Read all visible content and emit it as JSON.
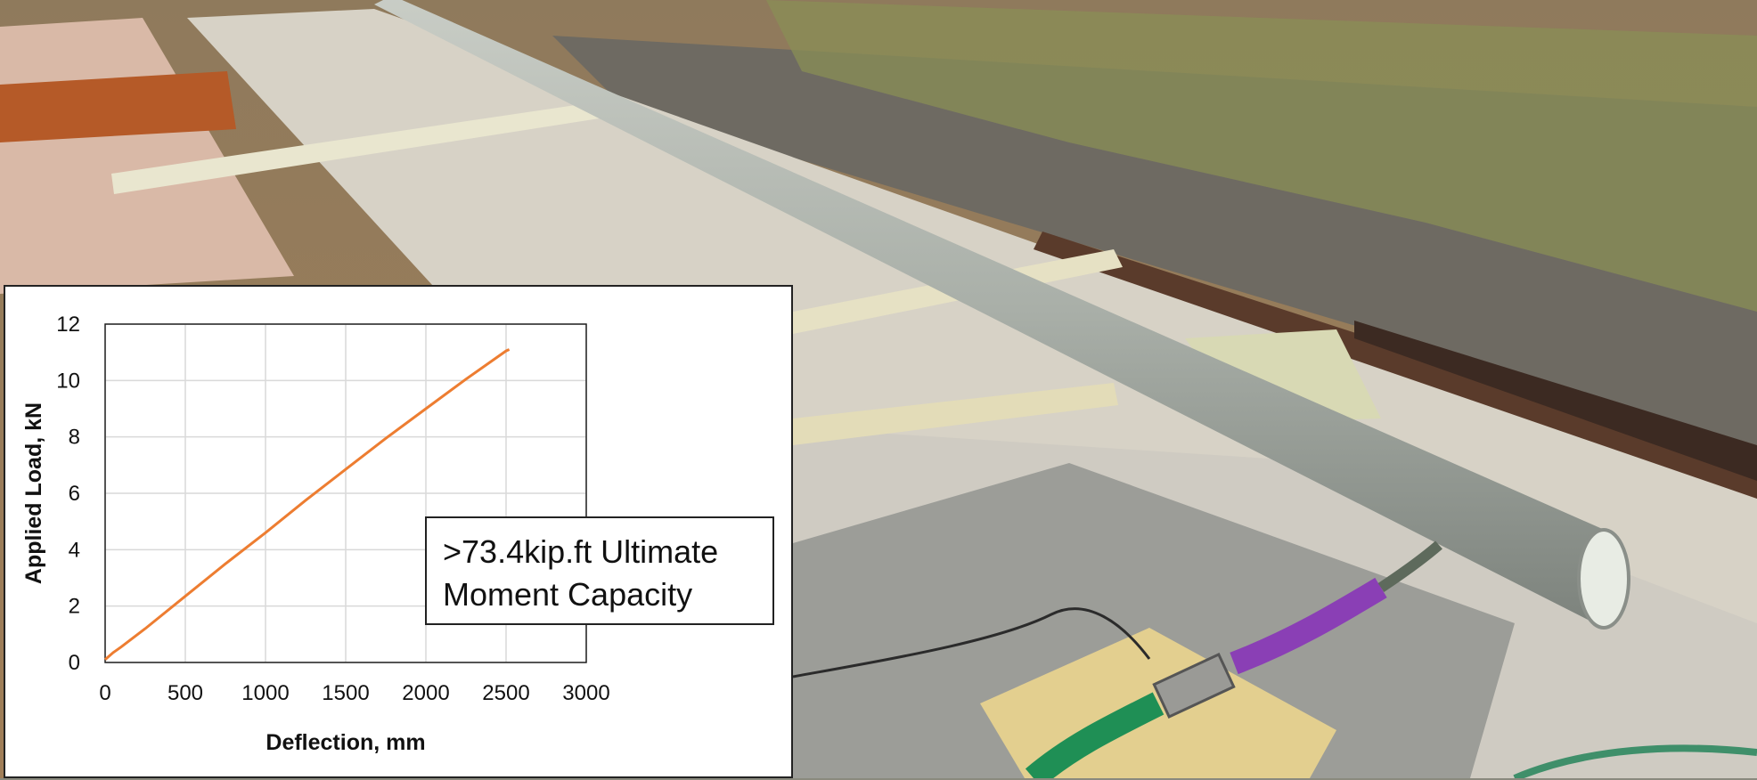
{
  "colors": {
    "series": "#ED7D31",
    "grid": "#D9D9D9",
    "panel_bg": "#FFFFFF",
    "axis": "#222222"
  },
  "scene": {
    "icon": "photo-of-fiberglass-pole-bending-test"
  },
  "chart_data": {
    "type": "line",
    "title": "",
    "xlabel": "Deflection, mm",
    "ylabel": "Applied Load, kN",
    "xlim": [
      0,
      3000
    ],
    "ylim": [
      0,
      12
    ],
    "xticks": [
      0,
      500,
      1000,
      1500,
      2000,
      2500,
      3000
    ],
    "yticks": [
      0,
      2,
      4,
      6,
      8,
      10,
      12
    ],
    "grid": true,
    "legend": "none",
    "annotation": {
      "line1": ">73.4kip.ft Ultimate",
      "line2": "Moment Capacity"
    },
    "series": [
      {
        "color": "#ED7D31",
        "x": [
          0,
          50,
          100,
          250,
          500,
          750,
          1000,
          1250,
          1500,
          1750,
          2000,
          2250,
          2500,
          2520
        ],
        "y": [
          0.1,
          0.35,
          0.55,
          1.2,
          2.35,
          3.5,
          4.6,
          5.75,
          6.85,
          7.95,
          9.0,
          10.05,
          11.05,
          11.1
        ]
      }
    ]
  }
}
